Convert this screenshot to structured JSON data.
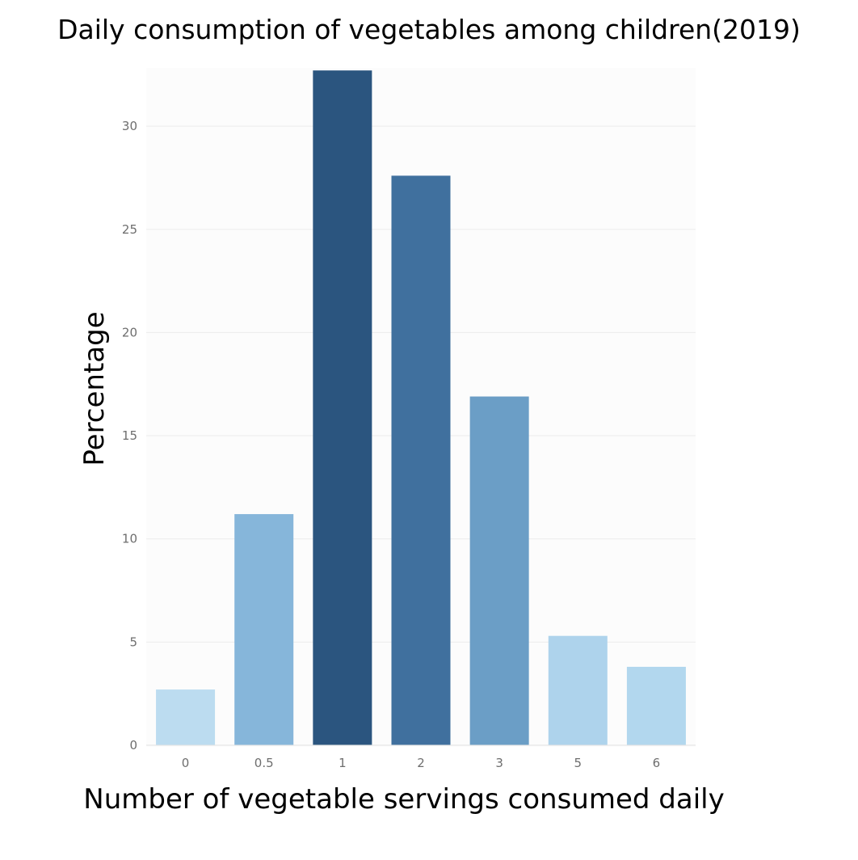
{
  "chart_data": {
    "type": "bar",
    "title": "Daily consumption of vegetables among children(2019)",
    "xlabel": "Number of vegetable servings consumed daily",
    "ylabel": "Percentage",
    "categories": [
      "0",
      "0.5",
      "1",
      "2",
      "3",
      "5",
      "6"
    ],
    "values": [
      2.7,
      11.2,
      32.7,
      27.6,
      16.9,
      5.3,
      3.8
    ],
    "bar_colors": [
      "#bcdcf0",
      "#86b6da",
      "#2b557f",
      "#40709e",
      "#6b9ec6",
      "#aed3ec",
      "#b2d7ee"
    ],
    "ylim": [
      0,
      33
    ],
    "yticks": [
      0,
      5,
      10,
      15,
      20,
      25,
      30
    ],
    "grid": true,
    "legend": "none"
  }
}
